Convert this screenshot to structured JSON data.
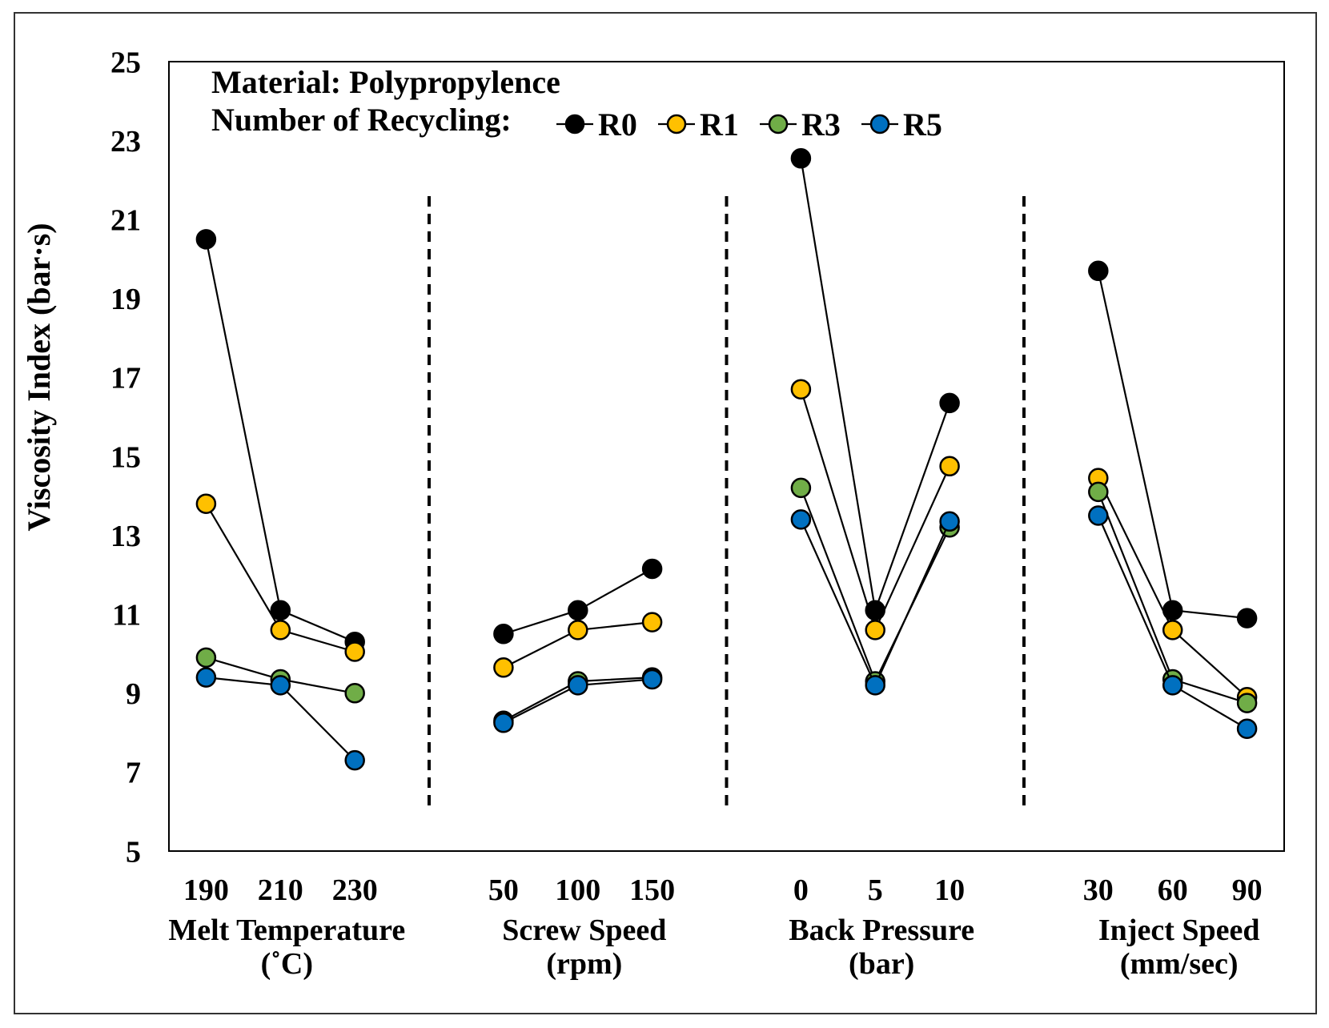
{
  "chart_data": {
    "type": "line",
    "annotation": "Material: Polypropylence",
    "legend_title": "Number of Recycling:",
    "ylabel": "Viscosity Index (bar·s)",
    "ylim": [
      5,
      25
    ],
    "yticks": [
      25,
      23,
      21,
      19,
      17,
      15,
      13,
      11,
      9,
      7,
      5
    ],
    "grid": false,
    "legend": "top-center",
    "groups": [
      {
        "label": "Melt Temperature",
        "unit": "(˚C)",
        "categories": [
          "190",
          "210",
          "230"
        ]
      },
      {
        "label": "Screw Speed",
        "unit": "(rpm)",
        "categories": [
          "50",
          "100",
          "150"
        ]
      },
      {
        "label": "Back Pressure",
        "unit": "(bar)",
        "categories": [
          "0",
          "5",
          "10"
        ]
      },
      {
        "label": "Inject Speed",
        "unit": "(mm/sec)",
        "categories": [
          "30",
          "60",
          "90"
        ]
      }
    ],
    "series": [
      {
        "name": "R0",
        "color": "#000000",
        "values": [
          [
            20.5,
            11.1,
            10.3
          ],
          [
            10.5,
            11.1,
            12.15
          ],
          [
            22.55,
            11.1,
            16.35
          ],
          [
            19.7,
            11.1,
            10.9
          ]
        ]
      },
      {
        "name": "R1",
        "color": "#FFC000",
        "values": [
          [
            13.8,
            10.6,
            10.05
          ],
          [
            9.65,
            10.6,
            10.8
          ],
          [
            16.7,
            10.6,
            14.75
          ],
          [
            14.45,
            10.6,
            8.9
          ]
        ]
      },
      {
        "name": "R3",
        "color": "#70AD47",
        "values": [
          [
            9.9,
            9.35,
            9.0
          ],
          [
            8.3,
            9.3,
            9.4
          ],
          [
            14.2,
            9.3,
            13.2
          ],
          [
            14.1,
            9.35,
            8.75
          ]
        ]
      },
      {
        "name": "R5",
        "color": "#0070C0",
        "values": [
          [
            9.4,
            9.2,
            7.3
          ],
          [
            8.25,
            9.2,
            9.35
          ],
          [
            13.4,
            9.2,
            13.35
          ],
          [
            13.5,
            9.2,
            8.1
          ]
        ]
      }
    ]
  }
}
